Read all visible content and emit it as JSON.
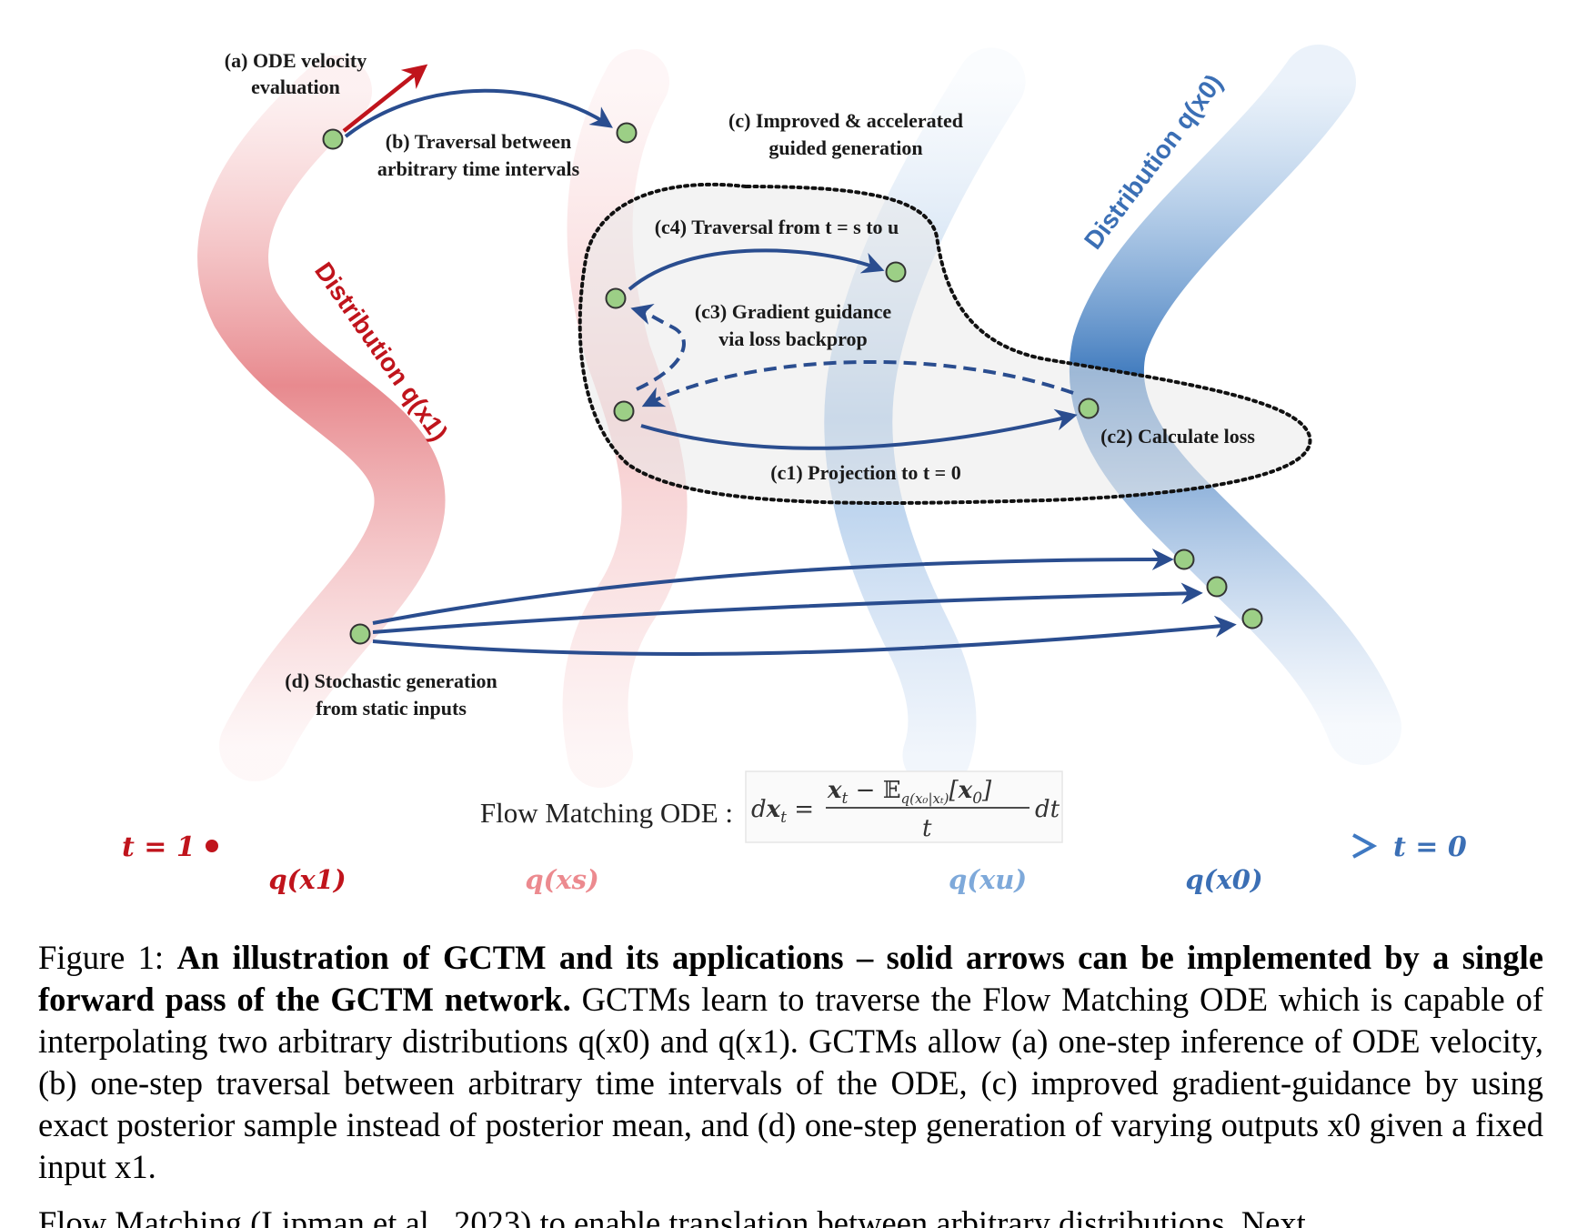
{
  "figure": {
    "labels": {
      "a_line1": "(a) ODE velocity",
      "a_line2": "evaluation",
      "b_line1": "(b) Traversal between",
      "b_line2": "arbitrary time intervals",
      "c_line1": "(c) Improved & accelerated",
      "c_line2": "guided generation",
      "c4": "(c4) Traversal from t = s to u",
      "c3_line1": "(c3) Gradient guidance",
      "c3_line2": "via loss backprop",
      "c2": "(c2) Calculate loss",
      "c1": "(c1) Projection to t = 0",
      "d_line1": "(d) Stochastic generation",
      "d_line2": "from static inputs",
      "dist_x1": "Distribution q(x1)",
      "dist_x0": "Distribution q(x0)"
    },
    "ode_label": "Flow Matching ODE :",
    "ode_formula": "dx_t = (x_t − E_q(x0|xt)[x0]) / t dt",
    "timeline": {
      "start": "t = 1",
      "end": "t = 0",
      "distributions": [
        "q(x1)",
        "q(xs)",
        "q(xu)",
        "q(x0)"
      ]
    },
    "colors": {
      "red": "#c0141c",
      "blue": "#2a4d8f",
      "light_blue": "#5b8fcf",
      "point_fill": "#9ccf86",
      "pink": "#e88a8e"
    }
  },
  "caption": {
    "figure_no": "Figure 1:",
    "bold_title": "An illustration of GCTM and its applications – solid arrows can be implemented by a single forward pass of the GCTM network.",
    "text": "GCTMs learn to traverse the Flow Matching ODE which is capable of interpolating two arbitrary distributions q(x0) and q(x1). GCTMs allow (a) one-step inference of ODE velocity, (b) one-step traversal between arbitrary time intervals of the ODE, (c) improved gradient-guidance by using exact posterior sample instead of posterior mean, and (d) one-step generation of varying outputs x0 given a fixed input x1."
  },
  "body_partial": "Flow Matching (Lipman et al., 2023) to enable translation between arbitrary distributions. Next,"
}
